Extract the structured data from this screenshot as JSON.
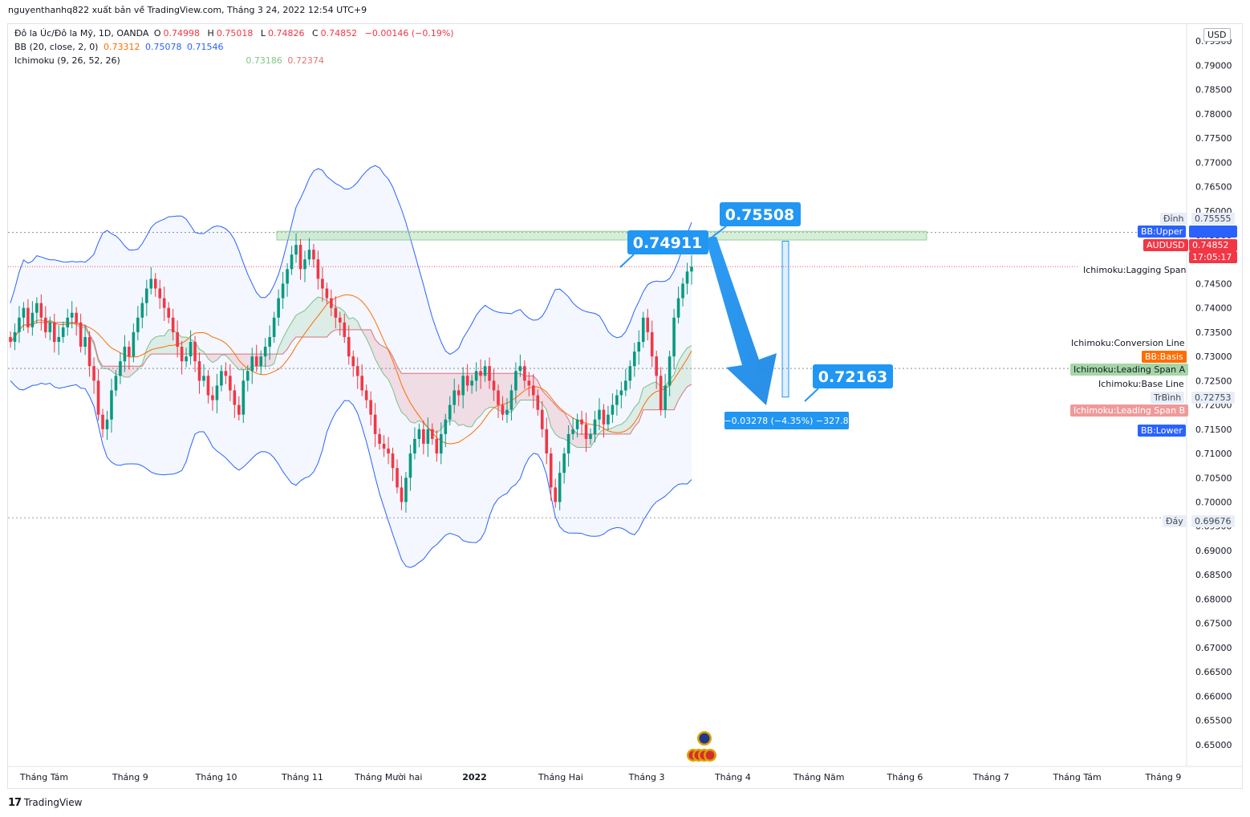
{
  "header": {
    "publisher_line": "nguyenthanhq822 xuất bản về TradingView.com, Tháng 3 24, 2022 12:54 UTC+9"
  },
  "legend": {
    "symbol_line": {
      "name": "Đô la Úc/Đô la Mỹ, 1D, OANDA",
      "o_label": "O",
      "o_value": "0.74998",
      "h_label": "H",
      "h_value": "0.75018",
      "l_label": "L",
      "l_value": "0.74826",
      "c_label": "C",
      "c_value": "0.74852",
      "change": "−0.00146 (−0.19%)"
    },
    "bb_line": {
      "name": "BB (20, close, 2, 0)",
      "basis": "0.73312",
      "upper": "0.75078",
      "lower": "0.71546"
    },
    "ichimoku_line": {
      "name": "Ichimoku (9, 26, 52, 26)",
      "span_a": "0.73186",
      "span_b": "0.72374"
    }
  },
  "price_axis": {
    "currency": "USD",
    "ticks": [
      "0.79500",
      "0.79000",
      "0.78500",
      "0.78000",
      "0.77500",
      "0.77000",
      "0.76500",
      "0.76000",
      "0.75500",
      "0.75000",
      "0.74500",
      "0.74000",
      "0.73500",
      "0.73000",
      "0.72500",
      "0.72000",
      "0.71500",
      "0.71000",
      "0.70500",
      "0.70000",
      "0.69500",
      "0.69000",
      "0.68500",
      "0.68000",
      "0.67500",
      "0.67000",
      "0.66500",
      "0.66000",
      "0.65500",
      "0.65000"
    ],
    "tags": {
      "high_label": "Đỉnh",
      "high_value": "0.75555",
      "bb_upper_label": "BB:Upper",
      "symbol_label": "AUDUSD",
      "symbol_price": "0.74852",
      "countdown": "17:05:17",
      "lagging_label": "Ichimoku:Lagging Span",
      "conversion_label": "Ichimoku:Conversion Line",
      "bb_basis_label": "BB:Basis",
      "span_a_label": "Ichimoku:Leading Span A",
      "base_label": "Ichimoku:Base Line",
      "avg_label": "TrBình",
      "avg_value": "0.72753",
      "span_b_label": "Ichimoku:Leading Span B",
      "bb_lower_label": "BB:Lower",
      "low_label": "Đáy",
      "low_value": "0.69676"
    }
  },
  "time_axis": [
    "Tháng Tám",
    "Tháng 9",
    "Tháng 10",
    "Tháng 11",
    "Tháng Mười hai",
    "2022",
    "Tháng Hai",
    "Tháng 3",
    "Tháng 4",
    "Tháng Năm",
    "Tháng 6",
    "Tháng 7",
    "Tháng Tám",
    "Tháng 9"
  ],
  "annotations": {
    "callout_1": "0.74911",
    "callout_2": "0.75508",
    "callout_3": "0.72163",
    "measure_label": "−0.03278 (−4.35%) −327.8"
  },
  "footer": {
    "brand": "TradingView"
  },
  "colors": {
    "up": "#26a69a",
    "down": "#ef5350",
    "candle_up": "#089981",
    "candle_down": "#f23645",
    "bb_band": "#2962ff",
    "bb_basis": "#ff6d00",
    "span_a": "#81c784",
    "span_b": "#e57373",
    "callout": "#2196f3"
  },
  "chart_data": {
    "type": "candlestick",
    "symbol": "AUDUSD",
    "timeframe": "1D",
    "ylim": [
      0.6455,
      0.7985
    ],
    "ohlc": {
      "open": 0.74998,
      "high": 0.75018,
      "low": 0.74826,
      "close": 0.74852
    },
    "levels": {
      "high": 0.75555,
      "low": 0.69676,
      "average": 0.72753,
      "resistance_zone": [
        0.754,
        0.7558
      ]
    },
    "projection": {
      "from": 0.74911,
      "to": 0.72163,
      "peak": 0.75508,
      "change": -0.03278,
      "change_pct": -4.35,
      "pips": -327.8
    },
    "closes": [
      0.733,
      0.735,
      0.738,
      0.74,
      0.736,
      0.739,
      0.741,
      0.738,
      0.735,
      0.737,
      0.733,
      0.734,
      0.736,
      0.738,
      0.739,
      0.737,
      0.732,
      0.734,
      0.728,
      0.725,
      0.718,
      0.715,
      0.717,
      0.723,
      0.726,
      0.729,
      0.732,
      0.73,
      0.735,
      0.738,
      0.741,
      0.744,
      0.746,
      0.744,
      0.742,
      0.74,
      0.738,
      0.735,
      0.732,
      0.729,
      0.73,
      0.733,
      0.729,
      0.725,
      0.726,
      0.722,
      0.721,
      0.724,
      0.727,
      0.726,
      0.723,
      0.72,
      0.718,
      0.725,
      0.727,
      0.73,
      0.728,
      0.73,
      0.732,
      0.734,
      0.738,
      0.742,
      0.745,
      0.748,
      0.751,
      0.753,
      0.748,
      0.75,
      0.752,
      0.75,
      0.746,
      0.744,
      0.742,
      0.74,
      0.738,
      0.737,
      0.734,
      0.73,
      0.728,
      0.726,
      0.723,
      0.721,
      0.718,
      0.714,
      0.712,
      0.711,
      0.71,
      0.707,
      0.703,
      0.7,
      0.705,
      0.71,
      0.713,
      0.715,
      0.712,
      0.715,
      0.713,
      0.71,
      0.714,
      0.717,
      0.72,
      0.723,
      0.722,
      0.726,
      0.724,
      0.725,
      0.727,
      0.726,
      0.728,
      0.725,
      0.723,
      0.72,
      0.718,
      0.719,
      0.723,
      0.727,
      0.728,
      0.725,
      0.724,
      0.722,
      0.719,
      0.715,
      0.71,
      0.703,
      0.7,
      0.706,
      0.71,
      0.714,
      0.715,
      0.717,
      0.716,
      0.713,
      0.714,
      0.717,
      0.719,
      0.716,
      0.718,
      0.72,
      0.722,
      0.723,
      0.725,
      0.728,
      0.731,
      0.733,
      0.738,
      0.735,
      0.73,
      0.726,
      0.719,
      0.724,
      0.73,
      0.738,
      0.742,
      0.745,
      0.7475,
      0.7485
    ]
  }
}
